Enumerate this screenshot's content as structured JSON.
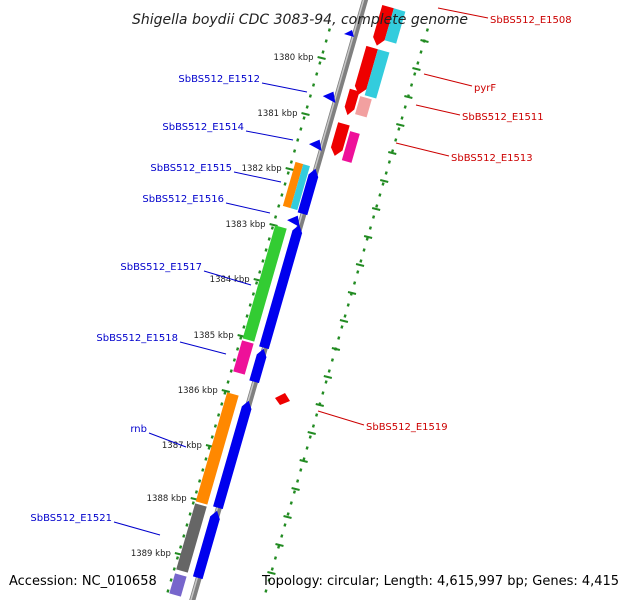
{
  "title": "Shigella boydii CDC 3083-94, complete genome",
  "accession": "Accession: NC_010658",
  "topology": "Topology: circular; Length: 4,615,997 bp; Genes: 4,415",
  "ticks": [
    "1380 kbp",
    "1381 kbp",
    "1382 kbp",
    "1383 kbp",
    "1384 kbp",
    "1385 kbp",
    "1386 kbp",
    "1387 kbp",
    "1388 kbp",
    "1389 kbp"
  ],
  "labels_left": [
    "SbBS512_E1512",
    "SbBS512_E1514",
    "SbBS512_E1515",
    "SbBS512_E1516",
    "SbBS512_E1517",
    "SbBS512_E1518",
    "rnb",
    "SbBS512_E1521"
  ],
  "labels_right": [
    "SbBS512_E1508",
    "pyrF",
    "SbBS512_E1511",
    "SbBS512_E1513",
    "SbBS512_E1519"
  ],
  "colors": {
    "left_label": "#0000cc",
    "right_label": "#cc0000",
    "tick_green": "#228b22",
    "red": "#ee0000",
    "pink": "#f2a0a0",
    "cyan": "#33ccdd",
    "magenta": "#ee1199",
    "blue": "#0000ee",
    "green": "#33cc33",
    "orange": "#ff8800",
    "gray": "#666666",
    "violet": "#7766cc"
  }
}
